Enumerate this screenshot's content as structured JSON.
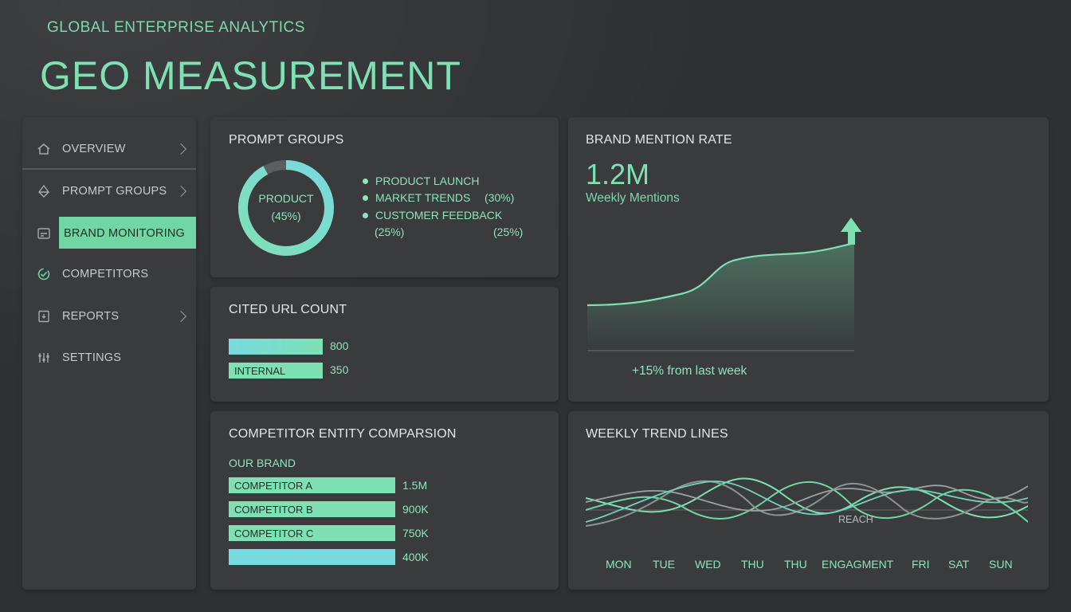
{
  "header": {
    "subtitle": "GLOBAL ENTERPRISE ANALYTICS",
    "title": "GEO MEASUREMENT"
  },
  "sidebar": {
    "items": [
      {
        "label": "OVERVIEW",
        "icon": "home-icon",
        "has_chevron": true
      },
      {
        "label": "PROMPT GROUPS",
        "icon": "network-icon",
        "has_chevron": true
      },
      {
        "label": "BRAND MONITORING",
        "icon": "monitor-icon",
        "active": true
      },
      {
        "label": "COMPETITORS",
        "icon": "check-circle-icon"
      },
      {
        "label": "REPORTS",
        "icon": "report-icon",
        "has_chevron": true
      },
      {
        "label": "SETTINGS",
        "icon": "settings-icon"
      }
    ]
  },
  "prompt_groups": {
    "title": "PROMPT GROUPS",
    "donut_center": {
      "label": "PRODUCT",
      "value": "(45%)"
    },
    "donut_fill_fraction": 0.92,
    "legend": [
      {
        "label": "PRODUCT LAUNCH"
      },
      {
        "label": "MARKET TRENDS",
        "value": "(30%)"
      },
      {
        "label": "CUSTOMER FEEDBACK"
      }
    ],
    "extra_values": [
      "(25%)",
      "(25%)"
    ]
  },
  "cited_url": {
    "title": "CITED URL COUNT",
    "bars": [
      {
        "label": "",
        "value": "800",
        "fill": 1.0
      },
      {
        "label": "INTERNAL",
        "value": "350",
        "fill": 1.0
      }
    ]
  },
  "brand_mention": {
    "title": "BRAND MENTION RATE",
    "value": "1.2M",
    "subtitle": "Weekly Mentions",
    "delta": "+15% from last week"
  },
  "competitor": {
    "title": "COMPETITOR ENTITY COMPARSION",
    "subheading": "OUR BRAND",
    "rows": [
      {
        "label": "COMPETITOR A",
        "value": "1.5M"
      },
      {
        "label": "COMPETITOR B",
        "value": "900K"
      },
      {
        "label": "COMPETITOR C",
        "value": "750K"
      },
      {
        "label": "",
        "value": "400K"
      }
    ]
  },
  "weekly_trend": {
    "title": "WEEKLY TREND LINES",
    "series_label": "REACH",
    "days": [
      "MON",
      "TUE",
      "WED",
      "THU",
      "THU",
      "ENGAGMENT",
      "FRI",
      "SAT",
      "SUN"
    ]
  },
  "colors": {
    "accent": "#7fe0b4",
    "accent_teal": "#7adbd6",
    "panel": "#393b3d",
    "background": "#2e3032"
  }
}
